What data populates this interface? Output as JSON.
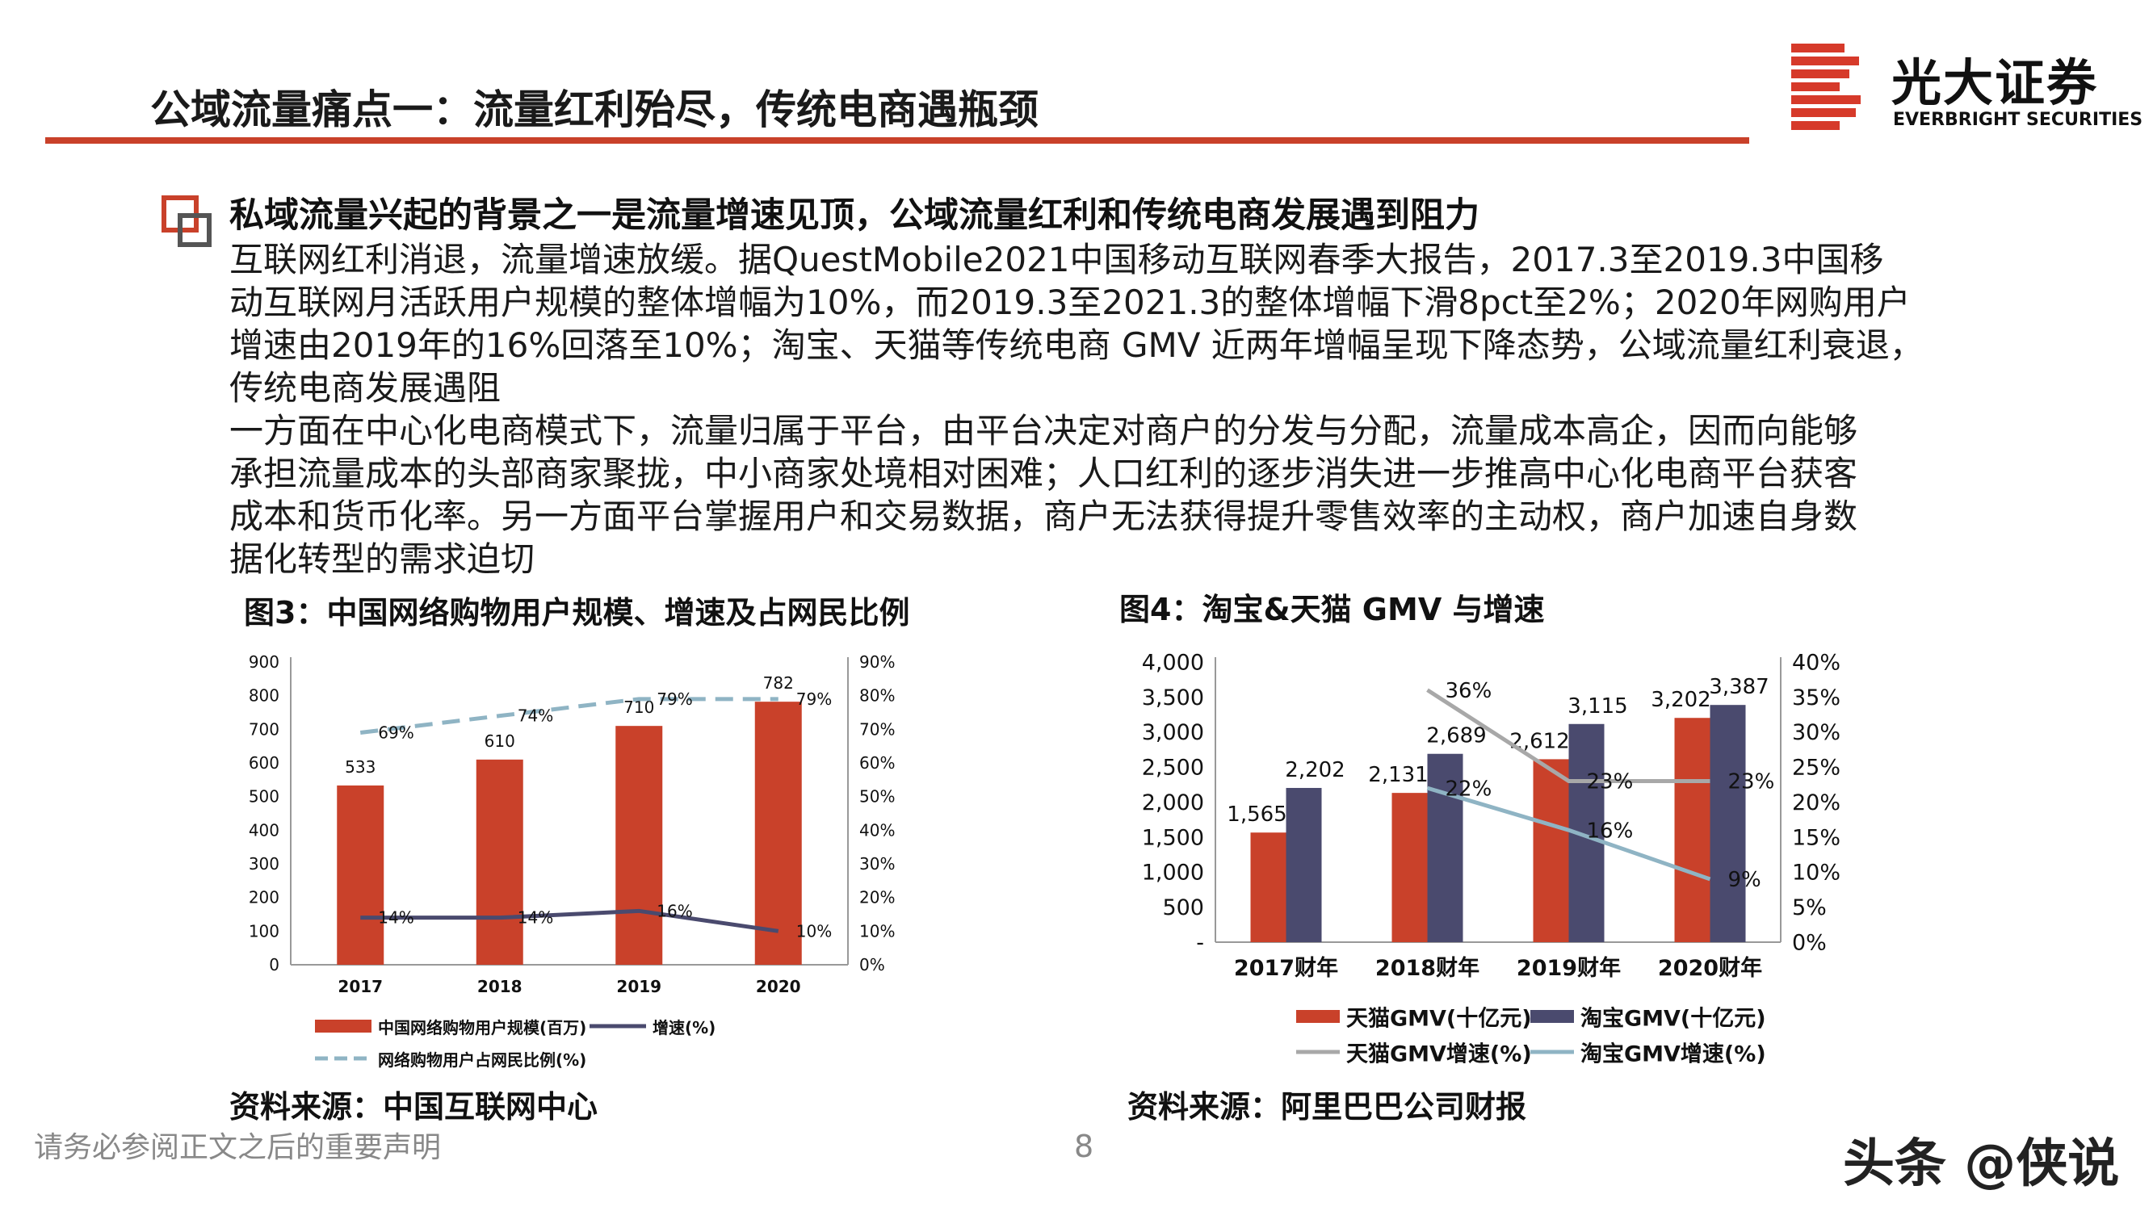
{
  "header": {
    "title": "公域流量痛点一：流量红利殆尽，传统电商遇瓶颈",
    "logo_name": "光大证券",
    "logo_sub": "EVERBRIGHT SECURITIES",
    "accent_color": "#c9412a"
  },
  "body": {
    "heading": "私域流量兴起的背景之一是流量增速见顶，公域流量红利和传统电商发展遇到阻力",
    "paragraph1_lines": [
      "互联网红利消退，流量增速放缓。据QuestMobile2021中国移动互联网春季大报告，2017.3至2019.3中国移",
      "动互联网月活跃用户规模的整体增幅为10%，而2019.3至2021.3的整体增幅下滑8pct至2%；2020年网购用户",
      "增速由2019年的16%回落至10%；淘宝、天猫等传统电商 GMV 近两年增幅呈现下降态势，公域流量红利衰退，",
      "传统电商发展遇阻"
    ],
    "paragraph2_lines": [
      "一方面在中心化电商模式下，流量归属于平台，由平台决定对商户的分发与分配，流量成本高企，因而向能够",
      "承担流量成本的头部商家聚拢，中小商家处境相对困难；人口红利的逐步消失进一步推高中心化电商平台获客",
      "成本和货币化率。另一方面平台掌握用户和交易数据，商户无法获得提升零售效率的主动权，商户加速自身数",
      "据化转型的需求迫切"
    ]
  },
  "chart3": {
    "caption": "图3：中国网络购物用户规模、增速及占网民比例",
    "source": "资料来源：中国互联网中心"
  },
  "chart4": {
    "caption": "图4：淘宝&天猫 GMV 与增速",
    "source": "资料来源：阿里巴巴公司财报"
  },
  "chart_data": [
    {
      "type": "bar",
      "categories": [
        "2017",
        "2018",
        "2019",
        "2020"
      ],
      "series": [
        {
          "name": "中国网络购物用户规模(百万)",
          "kind": "bar",
          "axis": "left",
          "values": [
            533,
            610,
            710,
            782
          ],
          "color": "#c9412a",
          "labels": [
            "533",
            "610",
            "710",
            "782"
          ]
        },
        {
          "name": "增速(%)",
          "kind": "line",
          "axis": "right",
          "values": [
            14,
            14,
            16,
            10
          ],
          "color": "#4a4a6e",
          "labels": [
            "14%",
            "14%",
            "16%",
            "10%"
          ]
        },
        {
          "name": "网络购物用户占网民比例(%)",
          "kind": "dashed-line",
          "axis": "right",
          "values": [
            69,
            74,
            79,
            79
          ],
          "color": "#8fb4c4",
          "labels": [
            "69%",
            "74%",
            "79%",
            "79%"
          ]
        }
      ],
      "left_ticks": [
        "0",
        "100",
        "200",
        "300",
        "400",
        "500",
        "600",
        "700",
        "800",
        "900"
      ],
      "right_ticks": [
        "0%",
        "10%",
        "20%",
        "30%",
        "40%",
        "50%",
        "60%",
        "70%",
        "80%",
        "90%"
      ],
      "ylim": [
        0,
        900
      ],
      "y2lim": [
        0,
        90
      ],
      "legend": "bottom"
    },
    {
      "type": "bar",
      "categories": [
        "2017财年",
        "2018财年",
        "2019财年",
        "2020财年"
      ],
      "series": [
        {
          "name": "天猫GMV(十亿元)",
          "kind": "bar",
          "axis": "left",
          "values": [
            1565,
            2131,
            2612,
            3202
          ],
          "color": "#c9412a",
          "labels": [
            "1,565",
            "2,131",
            "2,612",
            "3,202"
          ]
        },
        {
          "name": "淘宝GMV(十亿元)",
          "kind": "bar",
          "axis": "left",
          "values": [
            2202,
            2689,
            3115,
            3387
          ],
          "color": "#4a4a6e",
          "labels": [
            "2,202",
            "2,689",
            "3,115",
            "3,387"
          ]
        },
        {
          "name": "天猫GMV增速(%)",
          "kind": "line",
          "axis": "right",
          "values": [
            null,
            36,
            23,
            23
          ],
          "color": "#a8a8a8",
          "labels": [
            "",
            "36%",
            "23%",
            "23%"
          ]
        },
        {
          "name": "淘宝GMV增速(%)",
          "kind": "line",
          "axis": "right",
          "values": [
            null,
            22,
            16,
            9
          ],
          "color": "#8fb4c4",
          "labels": [
            "",
            "22%",
            "16%",
            "9%"
          ]
        }
      ],
      "left_ticks": [
        "-",
        "500",
        "1,000",
        "1,500",
        "2,000",
        "2,500",
        "3,000",
        "3,500",
        "4,000"
      ],
      "right_ticks": [
        "0%",
        "5%",
        "10%",
        "15%",
        "20%",
        "25%",
        "30%",
        "35%",
        "40%"
      ],
      "ylim": [
        0,
        4000
      ],
      "y2lim": [
        0,
        40
      ],
      "legend": "bottom"
    }
  ],
  "footer": {
    "disclaimer": "请务必参阅正文之后的重要声明",
    "page_number": "8",
    "watermark": "头条 @侠说"
  }
}
